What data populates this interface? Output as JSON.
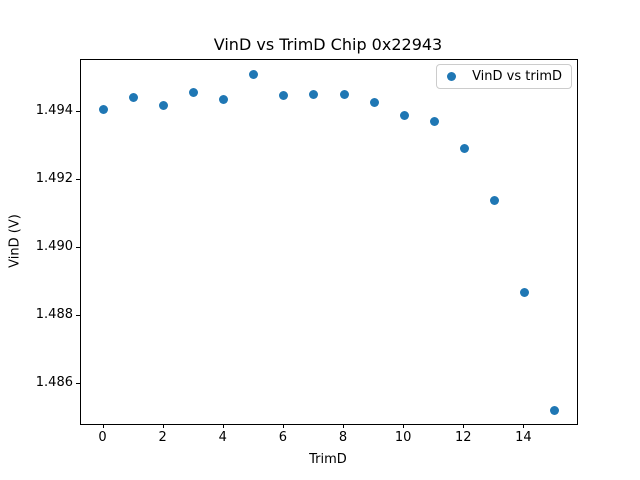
{
  "chart_data": {
    "type": "scatter",
    "title": "VinD vs TrimD Chip 0x22943",
    "xlabel": "TrimD",
    "ylabel": "VinD (V)",
    "series": [
      {
        "name": "VinD vs trimD",
        "x": [
          0,
          1,
          2,
          3,
          4,
          5,
          6,
          7,
          8,
          9,
          10,
          11,
          12,
          13,
          14,
          15
        ],
        "y": [
          1.49407,
          1.49443,
          1.4942,
          1.49457,
          1.49437,
          1.4951,
          1.49448,
          1.49451,
          1.49453,
          1.49428,
          1.49391,
          1.49371,
          1.49293,
          1.49141,
          1.48869,
          1.48522
        ]
      }
    ],
    "marker_color": "#1f77b4",
    "xlim": [
      -0.75,
      15.75
    ],
    "ylim": [
      1.48483,
      1.49553
    ],
    "xticks": {
      "values": [
        0,
        2,
        4,
        6,
        8,
        10,
        12,
        14
      ],
      "labels": [
        "0",
        "2",
        "4",
        "6",
        "8",
        "10",
        "12",
        "14"
      ]
    },
    "yticks": {
      "values": [
        1.486,
        1.488,
        1.49,
        1.492,
        1.494
      ],
      "labels": [
        "1.486",
        "1.488",
        "1.490",
        "1.492",
        "1.494"
      ]
    },
    "grid": false,
    "legend": {
      "label": "VinD vs trimD",
      "position": "upper right"
    }
  }
}
